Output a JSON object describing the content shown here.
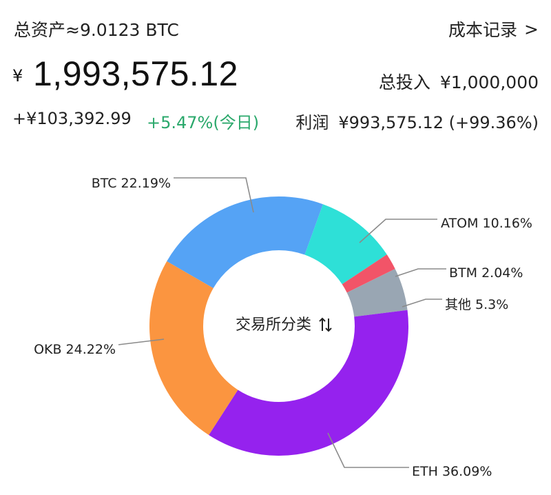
{
  "header": {
    "total_assets_label": "总资产≈9.0123 BTC",
    "cost_record_link": "成本记录",
    "cost_record_chevron": ">",
    "currency_symbol": "¥",
    "total_value": "1,993,575.12",
    "total_invest_label": "总投入",
    "total_invest_value": "¥1,000,000",
    "day_change": "+¥103,392.99",
    "day_change_pct": "+5.47%(今日)",
    "profit_label": "利润",
    "profit_value": "¥993,575.12 (+99.36%)"
  },
  "chart_data": {
    "type": "pie",
    "center_label": "交易所分类",
    "center_icon": "sort-toggle-icon",
    "slices": [
      {
        "name": "BTC",
        "value": 22.19,
        "label": "BTC  22.19%",
        "color": "#55a3f5"
      },
      {
        "name": "ATOM",
        "value": 10.16,
        "label": "ATOM  10.16%",
        "color": "#2ee0d7"
      },
      {
        "name": "BTM",
        "value": 2.04,
        "label": "BTM  2.04%",
        "color": "#f25468"
      },
      {
        "name": "其他",
        "value": 5.3,
        "label": "其他  5.3%",
        "color": "#99a6b3"
      },
      {
        "name": "ETH",
        "value": 36.09,
        "label": "ETH  36.09%",
        "color": "#9522ee"
      },
      {
        "name": "OKB",
        "value": 24.22,
        "label": "OKB  24.22%",
        "color": "#fb9540"
      }
    ]
  }
}
